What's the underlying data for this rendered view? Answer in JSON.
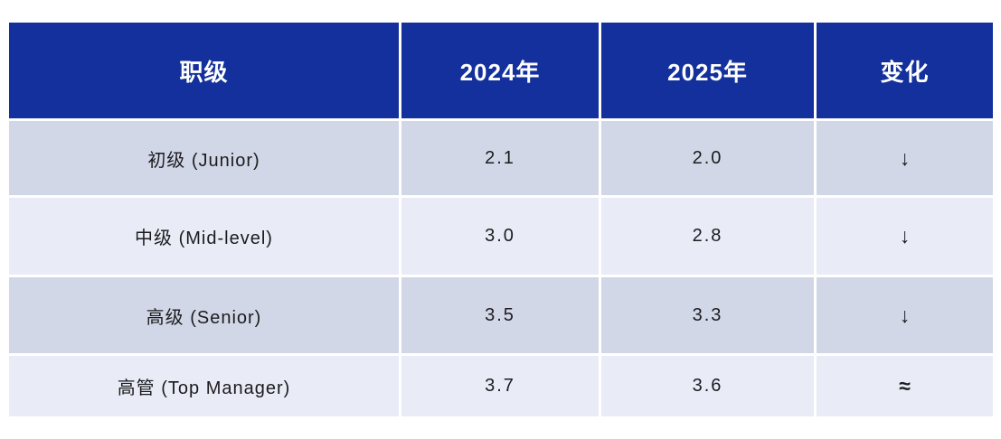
{
  "table": {
    "columns": {
      "level": "职级",
      "y2024": "2024年",
      "y2025": "2025年",
      "change": "变化"
    },
    "rows": [
      {
        "level": "初级 (Junior)",
        "y2024": "2.1",
        "y2025": "2.0",
        "change": "↓",
        "change_name": "down-arrow"
      },
      {
        "level": "中级 (Mid-level)",
        "y2024": "3.0",
        "y2025": "2.8",
        "change": "↓",
        "change_name": "down-arrow"
      },
      {
        "level": "高级 (Senior)",
        "y2024": "3.5",
        "y2025": "3.3",
        "change": "↓",
        "change_name": "down-arrow"
      },
      {
        "level": "高管 (Top Manager)",
        "y2024": "3.7",
        "y2025": "3.6",
        "change": "≈",
        "change_name": "approximately-equal"
      }
    ]
  },
  "colors": {
    "header_bg": "#13309c",
    "header_text": "#ffffff",
    "row_odd_bg": "#d2d7e7",
    "row_even_bg": "#e9ebf6",
    "body_text": "#1c1c1e",
    "page_bg": "#ffffff"
  }
}
